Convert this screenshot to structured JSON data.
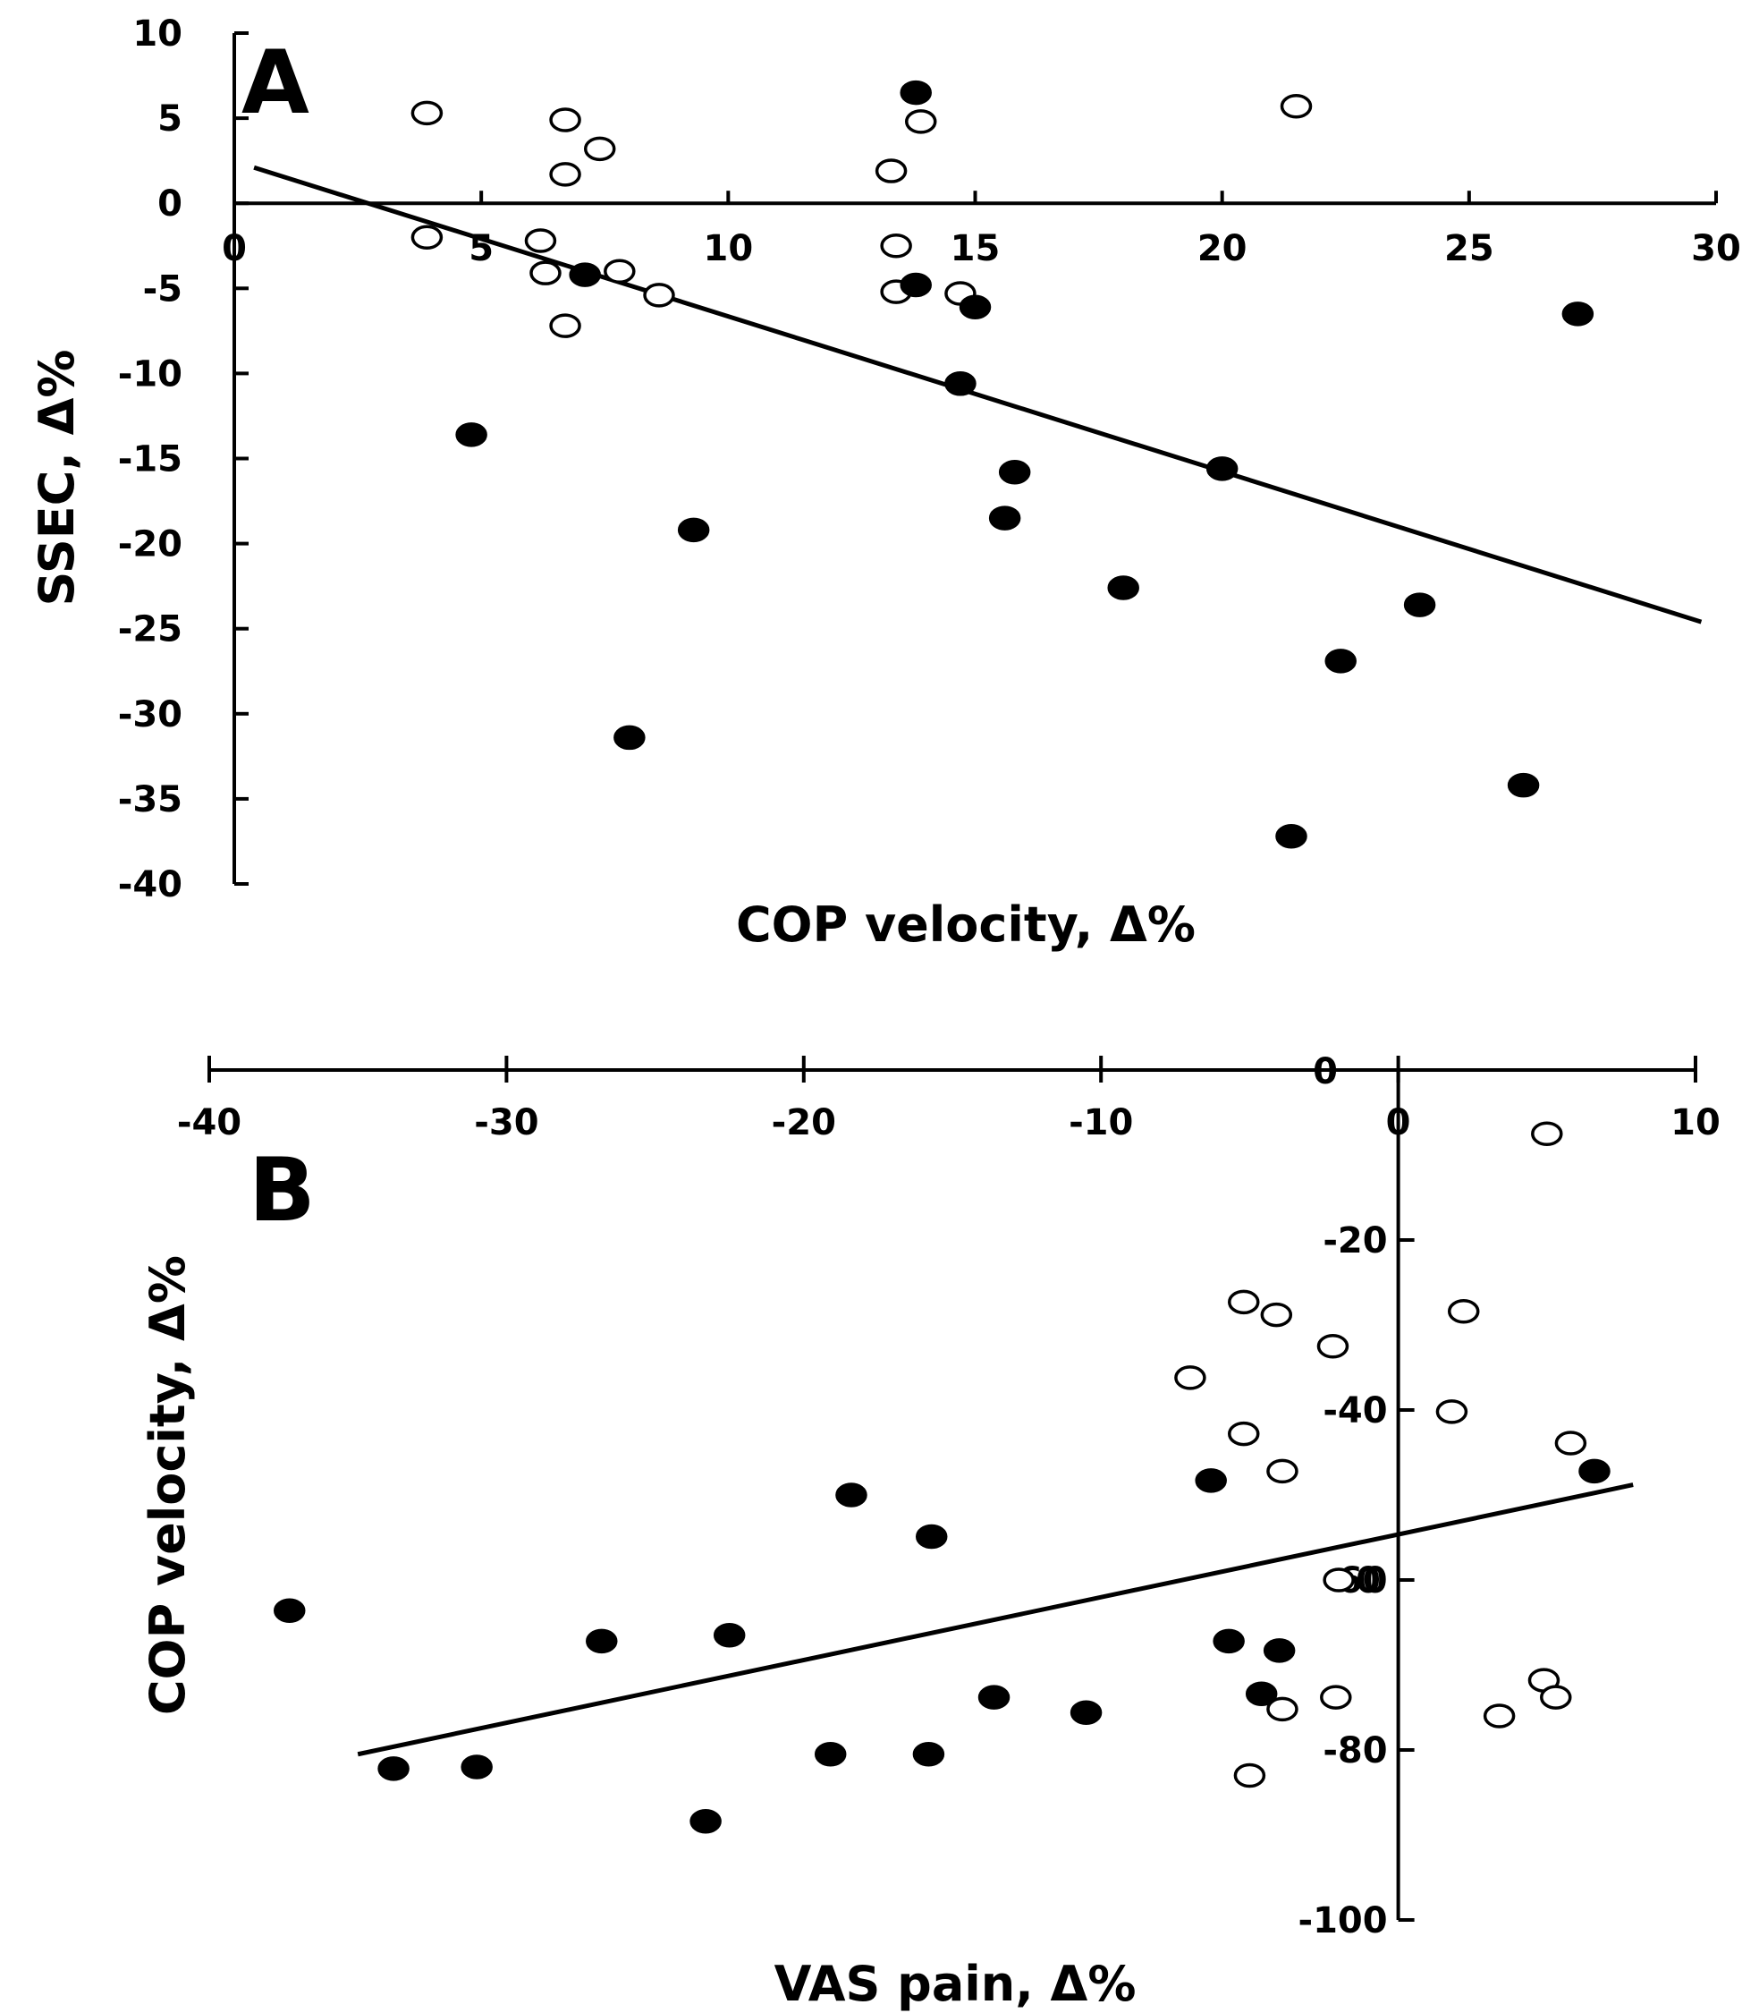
{
  "chart_data": [
    {
      "panel": "A",
      "type": "scatter",
      "title": "A",
      "xlabel": "COP velocity, Δ%",
      "ylabel": "SSEC, Δ%",
      "xlim": [
        0,
        30
      ],
      "ylim": [
        -40,
        10
      ],
      "xticks": [
        0,
        5,
        10,
        15,
        20,
        25,
        30
      ],
      "yticks": [
        10,
        5,
        0,
        -5,
        -10,
        -15,
        -20,
        -25,
        -30,
        -35,
        -40
      ],
      "grid": false,
      "series": [
        {
          "name": "open circles",
          "marker": "open",
          "points": [
            {
              "x": 3.9,
              "y": 5.3
            },
            {
              "x": 6.7,
              "y": 4.9
            },
            {
              "x": 7.4,
              "y": 3.2
            },
            {
              "x": 6.7,
              "y": 1.7
            },
            {
              "x": 13.3,
              "y": 1.9
            },
            {
              "x": 13.9,
              "y": 4.8
            },
            {
              "x": 21.5,
              "y": 5.7
            },
            {
              "x": 3.9,
              "y": -2.0
            },
            {
              "x": 6.2,
              "y": -2.2
            },
            {
              "x": 6.3,
              "y": -4.1
            },
            {
              "x": 7.8,
              "y": -4.0
            },
            {
              "x": 8.6,
              "y": -5.4
            },
            {
              "x": 6.7,
              "y": -7.2
            },
            {
              "x": 13.4,
              "y": -2.5
            },
            {
              "x": 13.4,
              "y": -5.2
            },
            {
              "x": 14.7,
              "y": -5.3
            }
          ]
        },
        {
          "name": "filled circles",
          "marker": "filled",
          "points": [
            {
              "x": 13.8,
              "y": 6.5
            },
            {
              "x": 7.1,
              "y": -4.2
            },
            {
              "x": 13.8,
              "y": -4.8
            },
            {
              "x": 15.0,
              "y": -6.1
            },
            {
              "x": 27.2,
              "y": -6.5
            },
            {
              "x": 14.7,
              "y": -10.6
            },
            {
              "x": 4.8,
              "y": -13.6
            },
            {
              "x": 15.8,
              "y": -15.8
            },
            {
              "x": 20.0,
              "y": -15.6
            },
            {
              "x": 15.6,
              "y": -18.5
            },
            {
              "x": 9.3,
              "y": -19.2
            },
            {
              "x": 18.0,
              "y": -22.6
            },
            {
              "x": 24.0,
              "y": -23.6
            },
            {
              "x": 22.4,
              "y": -26.9
            },
            {
              "x": 8.0,
              "y": -31.4
            },
            {
              "x": 26.1,
              "y": -34.2
            },
            {
              "x": 21.4,
              "y": -37.2
            }
          ]
        }
      ],
      "trendline": {
        "x": [
          0.4,
          29.7
        ],
        "y": [
          2.1,
          -24.6
        ]
      },
      "annotations": []
    },
    {
      "panel": "B",
      "type": "scatter",
      "title": "B",
      "xlabel": "VAS pain, Δ%",
      "ylabel": "COP velocity, Δ%",
      "xlim": [
        -40,
        10
      ],
      "ylim": [
        -100,
        0
      ],
      "xticks": [
        -40,
        -30,
        -20,
        -10,
        0,
        10
      ],
      "yticks": [
        -20,
        -40,
        -60,
        -80,
        -100
      ],
      "grid": false,
      "series": [
        {
          "name": "open circles",
          "marker": "open",
          "points": [
            {
              "x": 5.0,
              "y": -7.5
            },
            {
              "x": -5.2,
              "y": -27.3
            },
            {
              "x": -4.1,
              "y": -28.8
            },
            {
              "x": 2.2,
              "y": -28.4
            },
            {
              "x": -2.2,
              "y": -32.5
            },
            {
              "x": -7.0,
              "y": -36.2
            },
            {
              "x": 1.8,
              "y": -40.2
            },
            {
              "x": -5.2,
              "y": -42.8
            },
            {
              "x": 5.8,
              "y": -43.9
            },
            {
              "x": -3.9,
              "y": -47.2
            },
            {
              "x": -2.0,
              "y": -60.0
            },
            {
              "x": 4.9,
              "y": -71.8
            },
            {
              "x": -2.1,
              "y": -73.8
            },
            {
              "x": 5.3,
              "y": -73.8
            },
            {
              "x": -3.9,
              "y": -75.2
            },
            {
              "x": 3.4,
              "y": -76.0
            },
            {
              "x": -5.0,
              "y": -83.0
            }
          ]
        },
        {
          "name": "filled circles",
          "marker": "filled",
          "points": [
            {
              "x": -18.4,
              "y": -50.0
            },
            {
              "x": -15.7,
              "y": -54.9
            },
            {
              "x": -6.3,
              "y": -48.3
            },
            {
              "x": 6.6,
              "y": -47.2
            },
            {
              "x": -37.3,
              "y": -63.6
            },
            {
              "x": -26.8,
              "y": -67.2
            },
            {
              "x": -22.5,
              "y": -66.5
            },
            {
              "x": -5.7,
              "y": -67.2
            },
            {
              "x": -4.0,
              "y": -68.3
            },
            {
              "x": -13.6,
              "y": -73.8
            },
            {
              "x": -4.6,
              "y": -73.4
            },
            {
              "x": -10.5,
              "y": -75.6
            },
            {
              "x": -19.1,
              "y": -80.5
            },
            {
              "x": -15.8,
              "y": -80.5
            },
            {
              "x": -33.8,
              "y": -82.2
            },
            {
              "x": -31.0,
              "y": -82.0
            },
            {
              "x": -23.3,
              "y": -88.4
            }
          ]
        }
      ],
      "trendline": {
        "x": [
          -35.0,
          7.9
        ],
        "y": [
          -80.5,
          -48.8
        ]
      },
      "annotations": [
        {
          "text": "0"
        },
        {
          "text": "0"
        }
      ]
    }
  ]
}
